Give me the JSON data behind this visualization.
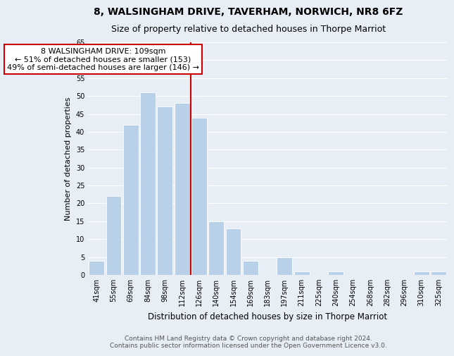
{
  "title": "8, WALSINGHAM DRIVE, TAVERHAM, NORWICH, NR8 6FZ",
  "subtitle": "Size of property relative to detached houses in Thorpe Marriot",
  "xlabel": "Distribution of detached houses by size in Thorpe Marriot",
  "ylabel": "Number of detached properties",
  "bar_labels": [
    "41sqm",
    "55sqm",
    "69sqm",
    "84sqm",
    "98sqm",
    "112sqm",
    "126sqm",
    "140sqm",
    "154sqm",
    "169sqm",
    "183sqm",
    "197sqm",
    "211sqm",
    "225sqm",
    "240sqm",
    "254sqm",
    "268sqm",
    "282sqm",
    "296sqm",
    "310sqm",
    "325sqm"
  ],
  "bar_heights": [
    4,
    22,
    42,
    51,
    47,
    48,
    44,
    15,
    13,
    4,
    0,
    5,
    1,
    0,
    1,
    0,
    0,
    0,
    0,
    1,
    1
  ],
  "bar_color": "#b8d0e8",
  "vline_x": 5.5,
  "vline_color": "#cc0000",
  "annotation_title": "8 WALSINGHAM DRIVE: 109sqm",
  "annotation_line1": "← 51% of detached houses are smaller (153)",
  "annotation_line2": "49% of semi-detached houses are larger (146) →",
  "annotation_box_color": "#ffffff",
  "annotation_box_edge": "#cc0000",
  "ylim": [
    0,
    65
  ],
  "yticks": [
    0,
    5,
    10,
    15,
    20,
    25,
    30,
    35,
    40,
    45,
    50,
    55,
    60,
    65
  ],
  "background_color": "#e8eef5",
  "plot_background": "#e8eef5",
  "footer_line1": "Contains HM Land Registry data © Crown copyright and database right 2024.",
  "footer_line2": "Contains public sector information licensed under the Open Government Licence v3.0.",
  "title_fontsize": 10,
  "subtitle_fontsize": 9,
  "xlabel_fontsize": 8.5,
  "ylabel_fontsize": 8,
  "tick_fontsize": 7,
  "footer_fontsize": 6.5,
  "annotation_fontsize": 8
}
